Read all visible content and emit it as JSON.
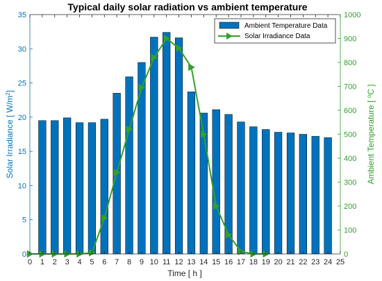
{
  "chart_data": {
    "type": "bar",
    "title": "Typical daily solar radiation vs ambient temperature",
    "xlabel": "Time [ h ]",
    "ylabel_left_parts": [
      "Solar Irradiance  [ W/m",
      "2",
      "]"
    ],
    "ylabel_right_parts": [
      "Ambient Temperature  [ ",
      "o",
      "C ]"
    ],
    "xlim": [
      0,
      25
    ],
    "ylim_left": [
      0,
      35
    ],
    "ylim_right": [
      0,
      1000
    ],
    "x_ticks": [
      0,
      1,
      2,
      3,
      4,
      5,
      6,
      7,
      8,
      9,
      10,
      11,
      12,
      13,
      14,
      15,
      16,
      17,
      18,
      19,
      20,
      21,
      22,
      23,
      24,
      25
    ],
    "y_ticks_left": [
      0,
      5,
      10,
      15,
      20,
      25,
      30,
      35
    ],
    "y_ticks_right": [
      0,
      100,
      200,
      300,
      400,
      500,
      600,
      700,
      800,
      900,
      1000
    ],
    "legend_position": "top-right",
    "series": [
      {
        "name": "Ambient Temperature Data",
        "kind": "bar",
        "axis": "left",
        "color": "#0072BD",
        "x": [
          1,
          2,
          3,
          4,
          5,
          6,
          7,
          8,
          9,
          10,
          11,
          12,
          13,
          14,
          15,
          16,
          17,
          18,
          19,
          20,
          21,
          22,
          23,
          24
        ],
        "values": [
          19.5,
          19.5,
          19.9,
          19.2,
          19.2,
          19.7,
          23.5,
          25.9,
          28.0,
          31.7,
          32.4,
          31.6,
          23.7,
          20.6,
          21.1,
          20.4,
          19.3,
          18.6,
          18.2,
          17.8,
          17.7,
          17.5,
          17.2,
          17.0
        ]
      },
      {
        "name": "Solar Irradiance Data",
        "kind": "line",
        "axis": "right",
        "color": "#33A02C",
        "x": [
          0,
          1,
          2,
          3,
          4,
          5,
          6,
          7,
          8,
          9,
          10,
          11,
          12,
          13,
          14,
          15,
          16,
          17,
          18,
          19
        ],
        "values": [
          0,
          0,
          0,
          0,
          0,
          5,
          150,
          340,
          520,
          695,
          820,
          900,
          860,
          780,
          500,
          200,
          80,
          10,
          0,
          0
        ]
      }
    ]
  }
}
